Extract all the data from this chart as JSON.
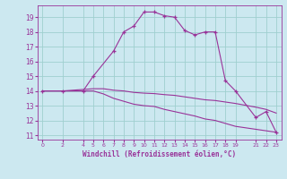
{
  "xlabel": "Windchill (Refroidissement éolien,°C)",
  "bg_color": "#cce8f0",
  "grid_color": "#9fcfcf",
  "line_color": "#993399",
  "x_ticks": [
    0,
    2,
    4,
    5,
    6,
    7,
    8,
    9,
    10,
    11,
    12,
    13,
    14,
    15,
    16,
    17,
    18,
    19,
    21,
    22,
    23
  ],
  "ylim": [
    10.7,
    19.8
  ],
  "xlim": [
    -0.5,
    23.5
  ],
  "yticks": [
    11,
    12,
    13,
    14,
    15,
    16,
    17,
    18,
    19
  ],
  "series1_x": [
    0,
    2,
    4,
    5,
    7,
    8,
    9,
    10,
    11,
    12,
    13,
    14,
    15,
    16,
    17,
    18,
    19,
    21,
    22,
    23
  ],
  "series1_y": [
    14.0,
    14.0,
    14.0,
    15.0,
    16.7,
    18.0,
    18.4,
    19.35,
    19.35,
    19.1,
    19.0,
    18.1,
    17.8,
    18.0,
    18.0,
    14.7,
    14.0,
    12.2,
    12.6,
    11.2
  ],
  "series2_x": [
    0,
    2,
    4,
    5,
    6,
    7,
    8,
    9,
    10,
    11,
    12,
    13,
    14,
    15,
    16,
    17,
    18,
    19,
    21,
    22,
    23
  ],
  "series2_y": [
    14.0,
    14.0,
    14.0,
    14.0,
    13.8,
    13.5,
    13.3,
    13.1,
    13.0,
    12.95,
    12.75,
    12.6,
    12.45,
    12.3,
    12.1,
    12.0,
    11.8,
    11.6,
    11.4,
    11.3,
    11.2
  ],
  "series3_x": [
    0,
    2,
    4,
    5,
    6,
    7,
    8,
    9,
    10,
    11,
    12,
    13,
    14,
    15,
    16,
    17,
    18,
    19,
    21,
    22,
    23
  ],
  "series3_y": [
    14.0,
    14.0,
    14.1,
    14.15,
    14.15,
    14.05,
    14.0,
    13.9,
    13.85,
    13.82,
    13.75,
    13.7,
    13.6,
    13.5,
    13.4,
    13.35,
    13.25,
    13.15,
    12.9,
    12.75,
    12.5
  ]
}
